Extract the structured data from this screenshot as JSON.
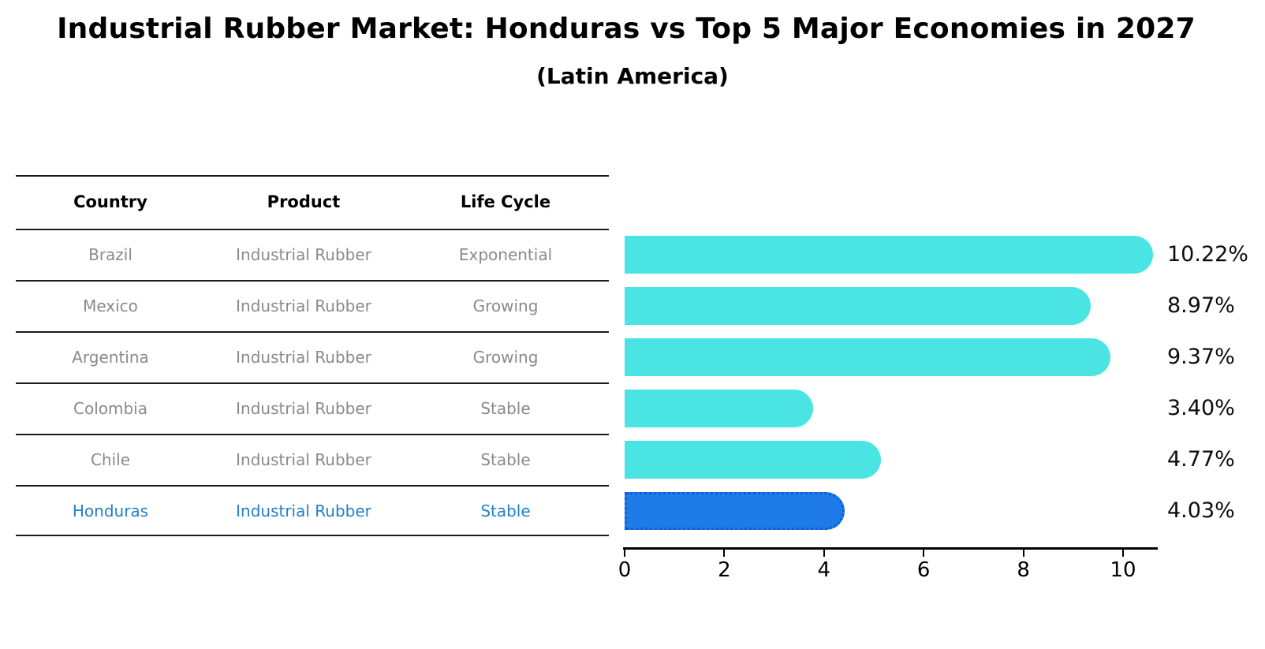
{
  "title": "Industrial Rubber Market: Honduras vs Top 5 Major Economies in 2027",
  "subtitle": "(Latin America)",
  "table": {
    "headers": [
      "Country",
      "Product",
      "Life Cycle"
    ],
    "rows": [
      {
        "country": "Brazil",
        "product": "Industrial Rubber",
        "life_cycle": "Exponential",
        "highlight": false
      },
      {
        "country": "Mexico",
        "product": "Industrial Rubber",
        "life_cycle": "Growing",
        "highlight": false
      },
      {
        "country": "Argentina",
        "product": "Industrial Rubber",
        "life_cycle": "Growing",
        "highlight": false
      },
      {
        "country": "Colombia",
        "product": "Industrial Rubber",
        "life_cycle": "Stable",
        "highlight": false
      },
      {
        "country": "Chile",
        "product": "Industrial Rubber",
        "life_cycle": "Stable",
        "highlight": false
      },
      {
        "country": "Honduras",
        "product": "Industrial Rubber",
        "life_cycle": "Stable",
        "highlight": true
      }
    ]
  },
  "chart_data": {
    "type": "bar",
    "orientation": "horizontal",
    "title": "Industrial Rubber Market: Honduras vs Top 5 Major Economies in 2027",
    "subtitle": "(Latin America)",
    "categories": [
      "Brazil",
      "Mexico",
      "Argentina",
      "Colombia",
      "Chile",
      "Honduras"
    ],
    "values": [
      10.22,
      8.97,
      9.37,
      3.4,
      4.77,
      4.03
    ],
    "value_labels": [
      "10.22%",
      "8.97%",
      "9.37%",
      "3.40%",
      "4.77%",
      "4.03%"
    ],
    "x_ticks": [
      0,
      2,
      4,
      6,
      8,
      10
    ],
    "xlim": [
      0,
      10.7
    ],
    "grid": false,
    "legend": "none",
    "highlight_index": 5
  },
  "colors": {
    "bar": "#4AE5E2",
    "highlight_bar": "#1E7BE8",
    "highlight_border": "#0E5ED6",
    "highlight_text": "#2380c8",
    "table_text": "#8a8a8a",
    "header_text": "#000000",
    "line": "#1a1a1a"
  }
}
